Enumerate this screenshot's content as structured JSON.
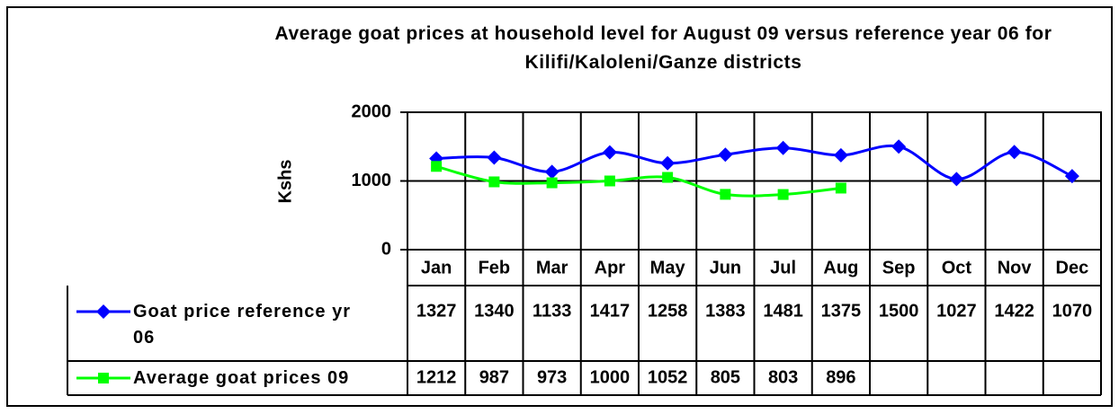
{
  "chart_data": {
    "type": "line",
    "title": "Average goat prices at household level for August 09 versus reference year 06 for Kilifi/Kaloleni/Ganze districts",
    "y_label": "Kshs",
    "categories": [
      "Jan",
      "Feb",
      "Mar",
      "Apr",
      "May",
      "Jun",
      "Jul",
      "Aug",
      "Sep",
      "Oct",
      "Nov",
      "Dec"
    ],
    "series": [
      {
        "name": "Goat price reference yr 06",
        "color": "#0000ff",
        "marker": "diamond",
        "values": [
          1327,
          1340,
          1133,
          1417,
          1258,
          1383,
          1481,
          1375,
          1500,
          1027,
          1422,
          1070
        ]
      },
      {
        "name": "Average goat prices 09",
        "color": "#00ff00",
        "marker": "square",
        "values": [
          1212,
          987,
          973,
          1000,
          1052,
          805,
          803,
          896,
          null,
          null,
          null,
          null
        ]
      }
    ],
    "ylim": [
      0,
      2000
    ],
    "yticks": [
      0,
      1000,
      2000
    ],
    "grid": true,
    "data_table": true
  }
}
